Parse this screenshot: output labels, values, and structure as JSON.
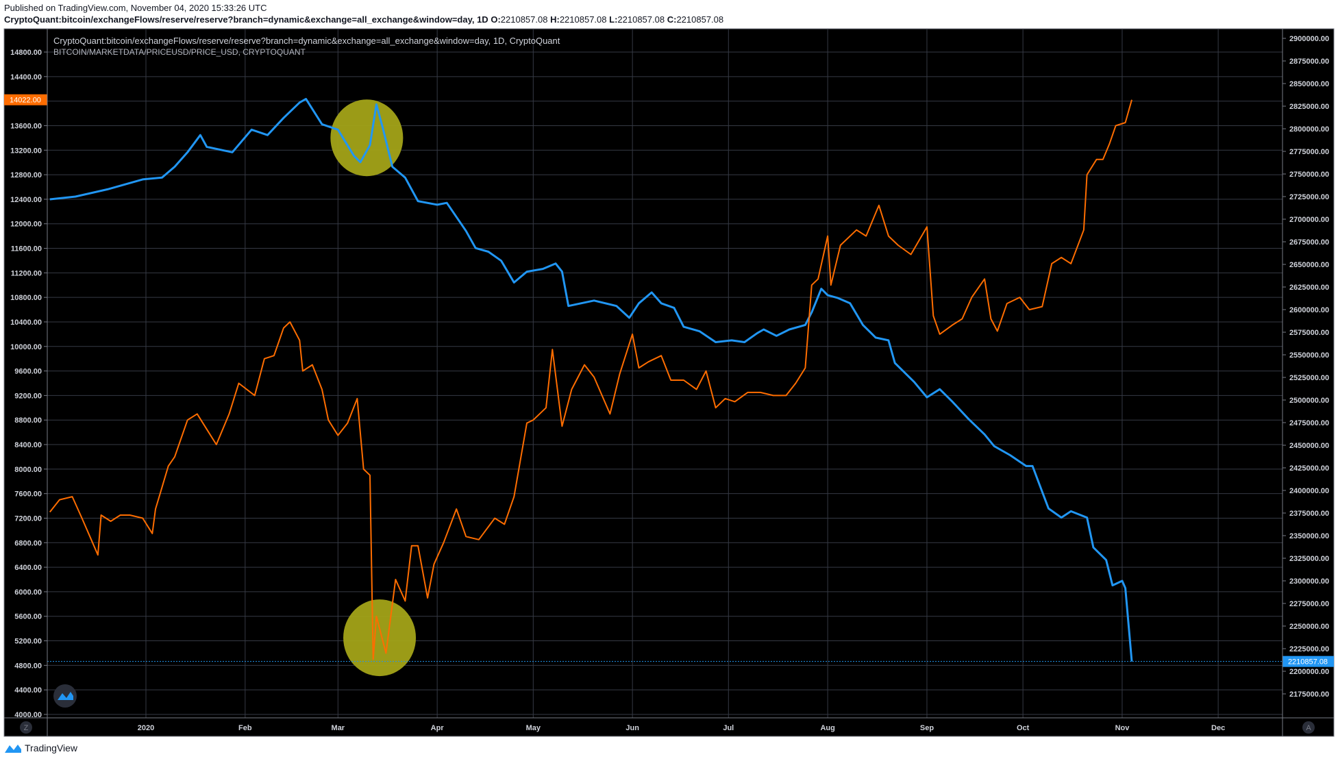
{
  "header": {
    "published": "Published on TradingView.com, November 04, 2020 15:33:26 UTC",
    "symbol": "CryptoQuant:bitcoin/exchangeFlows/reserve/reserve?branch=dynamic&exchange=all_exchange&window=day, 1D",
    "ohlc": {
      "o_label": "O:",
      "o": "2210857.08",
      "h_label": "H:",
      "h": "2210857.08",
      "l_label": "L:",
      "l": "2210857.08",
      "c_label": "C:",
      "c": "2210857.08"
    }
  },
  "legend": {
    "series1": "CryptoQuant:bitcoin/exchangeFlows/reserve/reserve?branch=dynamic&exchange=all_exchange&window=day, 1D, CryptoQuant",
    "series2": "BITCOIN/MARKETDATA/PRICEUSD/PRICE_USD, CRYPTOQUANT"
  },
  "footer": {
    "brand": "TradingView"
  },
  "buttons": {
    "left_scale": "Z",
    "right_scale": "A"
  },
  "colors": {
    "background": "#000000",
    "grid": "#363a45",
    "price": "#ff6d00",
    "reserve": "#2196f3",
    "highlight": "#a3a318"
  },
  "chart_data": {
    "type": "line",
    "grid": true,
    "x_ticks": [
      "2020",
      "Feb",
      "Mar",
      "Apr",
      "May",
      "Jun",
      "Jul",
      "Aug",
      "Sep",
      "Oct",
      "Nov",
      "Dec"
    ],
    "x_tick_dates": [
      "2020-01-01",
      "2020-02-01",
      "2020-03-01",
      "2020-04-01",
      "2020-05-01",
      "2020-06-01",
      "2020-07-01",
      "2020-08-01",
      "2020-09-01",
      "2020-10-01",
      "2020-11-01",
      "2020-12-01"
    ],
    "left_axis": {
      "range": [
        4000,
        14800
      ],
      "ticks": [
        "14800.00",
        "14400.00",
        "13600.00",
        "13200.00",
        "12800.00",
        "12400.00",
        "12000.00",
        "11600.00",
        "11200.00",
        "10800.00",
        "10400.00",
        "10000.00",
        "9600.00",
        "9200.00",
        "8800.00",
        "8400.00",
        "8000.00",
        "7600.00",
        "7200.00",
        "6800.00",
        "6400.00",
        "6000.00",
        "5600.00",
        "5200.00",
        "4800.00",
        "4400.00",
        "4000.00"
      ],
      "last_label": "14022.00"
    },
    "right_axis": {
      "range": [
        2175000,
        2900000
      ],
      "ticks": [
        "2900000.00",
        "2875000.00",
        "2850000.00",
        "2825000.00",
        "2800000.00",
        "2775000.00",
        "2750000.00",
        "2725000.00",
        "2700000.00",
        "2675000.00",
        "2650000.00",
        "2625000.00",
        "2600000.00",
        "2575000.00",
        "2550000.00",
        "2525000.00",
        "2500000.00",
        "2475000.00",
        "2450000.00",
        "2425000.00",
        "2400000.00",
        "2375000.00",
        "2350000.00",
        "2325000.00",
        "2300000.00",
        "2275000.00",
        "2250000.00",
        "2225000.00",
        "2200000.00",
        "2175000.00"
      ],
      "last_label": "2210857.08"
    },
    "series": [
      {
        "key": "reserve",
        "axis": "right",
        "color": "#2196f3",
        "points": [
          [
            "2019-12-02",
            2722000
          ],
          [
            "2019-12-10",
            2725000
          ],
          [
            "2019-12-20",
            2733000
          ],
          [
            "2019-12-31",
            2744000
          ],
          [
            "2020-01-06",
            2746000
          ],
          [
            "2020-01-10",
            2758000
          ],
          [
            "2020-01-14",
            2774000
          ],
          [
            "2020-01-18",
            2793000
          ],
          [
            "2020-01-20",
            2780000
          ],
          [
            "2020-01-28",
            2774000
          ],
          [
            "2020-02-03",
            2799000
          ],
          [
            "2020-02-08",
            2793000
          ],
          [
            "2020-02-13",
            2812000
          ],
          [
            "2020-02-18",
            2829000
          ],
          [
            "2020-02-20",
            2833000
          ],
          [
            "2020-02-25",
            2805000
          ],
          [
            "2020-03-01",
            2799000
          ],
          [
            "2020-03-06",
            2770000
          ],
          [
            "2020-03-08",
            2763000
          ],
          [
            "2020-03-11",
            2782000
          ],
          [
            "2020-03-13",
            2827000
          ],
          [
            "2020-03-15",
            2801000
          ],
          [
            "2020-03-18",
            2758000
          ],
          [
            "2020-03-22",
            2746000
          ],
          [
            "2020-03-26",
            2720000
          ],
          [
            "2020-04-01",
            2716000
          ],
          [
            "2020-04-04",
            2718000
          ],
          [
            "2020-04-10",
            2687000
          ],
          [
            "2020-04-13",
            2668000
          ],
          [
            "2020-04-17",
            2664000
          ],
          [
            "2020-04-21",
            2654000
          ],
          [
            "2020-04-25",
            2630000
          ],
          [
            "2020-04-29",
            2642000
          ],
          [
            "2020-05-04",
            2645000
          ],
          [
            "2020-05-08",
            2651000
          ],
          [
            "2020-05-10",
            2642000
          ],
          [
            "2020-05-12",
            2604000
          ],
          [
            "2020-05-20",
            2610000
          ],
          [
            "2020-05-27",
            2604000
          ],
          [
            "2020-05-31",
            2591000
          ],
          [
            "2020-06-03",
            2607000
          ],
          [
            "2020-06-07",
            2619000
          ],
          [
            "2020-06-10",
            2607000
          ],
          [
            "2020-06-14",
            2602000
          ],
          [
            "2020-06-17",
            2581000
          ],
          [
            "2020-06-22",
            2576000
          ],
          [
            "2020-06-27",
            2564000
          ],
          [
            "2020-07-02",
            2566000
          ],
          [
            "2020-07-06",
            2564000
          ],
          [
            "2020-07-10",
            2574000
          ],
          [
            "2020-07-12",
            2578000
          ],
          [
            "2020-07-16",
            2571000
          ],
          [
            "2020-07-20",
            2578000
          ],
          [
            "2020-07-25",
            2583000
          ],
          [
            "2020-07-27",
            2597000
          ],
          [
            "2020-07-30",
            2623000
          ],
          [
            "2020-08-01",
            2616000
          ],
          [
            "2020-08-04",
            2613000
          ],
          [
            "2020-08-08",
            2607000
          ],
          [
            "2020-08-12",
            2583000
          ],
          [
            "2020-08-16",
            2569000
          ],
          [
            "2020-08-20",
            2566000
          ],
          [
            "2020-08-22",
            2541000
          ],
          [
            "2020-08-28",
            2520000
          ],
          [
            "2020-09-01",
            2503000
          ],
          [
            "2020-09-05",
            2512000
          ],
          [
            "2020-09-09",
            2498000
          ],
          [
            "2020-09-14",
            2479000
          ],
          [
            "2020-09-19",
            2462000
          ],
          [
            "2020-09-22",
            2449000
          ],
          [
            "2020-09-27",
            2439000
          ],
          [
            "2020-10-02",
            2427000
          ],
          [
            "2020-10-04",
            2427000
          ],
          [
            "2020-10-06",
            2408000
          ],
          [
            "2020-10-09",
            2380000
          ],
          [
            "2020-10-13",
            2370000
          ],
          [
            "2020-10-16",
            2377000
          ],
          [
            "2020-10-21",
            2370000
          ],
          [
            "2020-10-23",
            2337000
          ],
          [
            "2020-10-27",
            2323000
          ],
          [
            "2020-10-29",
            2295000
          ],
          [
            "2020-11-01",
            2300000
          ],
          [
            "2020-11-02",
            2292000
          ],
          [
            "2020-11-04",
            2210857.08
          ]
        ]
      },
      {
        "key": "price",
        "axis": "left",
        "color": "#ff6d00",
        "points": [
          [
            "2019-12-02",
            7300
          ],
          [
            "2019-12-05",
            7500
          ],
          [
            "2019-12-09",
            7550
          ],
          [
            "2019-12-12",
            7200
          ],
          [
            "2019-12-17",
            6600
          ],
          [
            "2019-12-18",
            7250
          ],
          [
            "2019-12-21",
            7150
          ],
          [
            "2019-12-24",
            7250
          ],
          [
            "2019-12-27",
            7250
          ],
          [
            "2019-12-31",
            7200
          ],
          [
            "2020-01-03",
            6950
          ],
          [
            "2020-01-04",
            7350
          ],
          [
            "2020-01-06",
            7700
          ],
          [
            "2020-01-08",
            8050
          ],
          [
            "2020-01-10",
            8200
          ],
          [
            "2020-01-14",
            8800
          ],
          [
            "2020-01-17",
            8900
          ],
          [
            "2020-01-20",
            8650
          ],
          [
            "2020-01-23",
            8400
          ],
          [
            "2020-01-27",
            8900
          ],
          [
            "2020-01-30",
            9400
          ],
          [
            "2020-02-04",
            9200
          ],
          [
            "2020-02-07",
            9800
          ],
          [
            "2020-02-10",
            9850
          ],
          [
            "2020-02-13",
            10300
          ],
          [
            "2020-02-15",
            10400
          ],
          [
            "2020-02-18",
            10100
          ],
          [
            "2020-02-19",
            9600
          ],
          [
            "2020-02-22",
            9700
          ],
          [
            "2020-02-25",
            9300
          ],
          [
            "2020-02-27",
            8800
          ],
          [
            "2020-03-01",
            8550
          ],
          [
            "2020-03-04",
            8750
          ],
          [
            "2020-03-07",
            9150
          ],
          [
            "2020-03-09",
            8000
          ],
          [
            "2020-03-11",
            7900
          ],
          [
            "2020-03-12",
            4900
          ],
          [
            "2020-03-13",
            5600
          ],
          [
            "2020-03-16",
            5000
          ],
          [
            "2020-03-19",
            6200
          ],
          [
            "2020-03-22",
            5850
          ],
          [
            "2020-03-24",
            6750
          ],
          [
            "2020-03-26",
            6750
          ],
          [
            "2020-03-29",
            5900
          ],
          [
            "2020-03-31",
            6450
          ],
          [
            "2020-04-03",
            6800
          ],
          [
            "2020-04-07",
            7350
          ],
          [
            "2020-04-10",
            6900
          ],
          [
            "2020-04-14",
            6850
          ],
          [
            "2020-04-19",
            7200
          ],
          [
            "2020-04-22",
            7100
          ],
          [
            "2020-04-25",
            7550
          ],
          [
            "2020-04-29",
            8750
          ],
          [
            "2020-05-01",
            8800
          ],
          [
            "2020-05-05",
            9000
          ],
          [
            "2020-05-07",
            9950
          ],
          [
            "2020-05-10",
            8700
          ],
          [
            "2020-05-13",
            9300
          ],
          [
            "2020-05-17",
            9700
          ],
          [
            "2020-05-20",
            9500
          ],
          [
            "2020-05-25",
            8900
          ],
          [
            "2020-05-28",
            9550
          ],
          [
            "2020-06-01",
            10200
          ],
          [
            "2020-06-03",
            9650
          ],
          [
            "2020-06-06",
            9750
          ],
          [
            "2020-06-10",
            9850
          ],
          [
            "2020-06-13",
            9450
          ],
          [
            "2020-06-17",
            9450
          ],
          [
            "2020-06-21",
            9300
          ],
          [
            "2020-06-24",
            9600
          ],
          [
            "2020-06-27",
            9000
          ],
          [
            "2020-06-30",
            9150
          ],
          [
            "2020-07-03",
            9100
          ],
          [
            "2020-07-07",
            9250
          ],
          [
            "2020-07-11",
            9250
          ],
          [
            "2020-07-15",
            9200
          ],
          [
            "2020-07-19",
            9200
          ],
          [
            "2020-07-22",
            9400
          ],
          [
            "2020-07-25",
            9650
          ],
          [
            "2020-07-27",
            11000
          ],
          [
            "2020-07-29",
            11100
          ],
          [
            "2020-08-01",
            11800
          ],
          [
            "2020-08-02",
            11000
          ],
          [
            "2020-08-05",
            11650
          ],
          [
            "2020-08-10",
            11900
          ],
          [
            "2020-08-13",
            11800
          ],
          [
            "2020-08-17",
            12300
          ],
          [
            "2020-08-20",
            11800
          ],
          [
            "2020-08-23",
            11650
          ],
          [
            "2020-08-27",
            11500
          ],
          [
            "2020-09-01",
            11950
          ],
          [
            "2020-09-03",
            10500
          ],
          [
            "2020-09-05",
            10200
          ],
          [
            "2020-09-09",
            10350
          ],
          [
            "2020-09-12",
            10450
          ],
          [
            "2020-09-15",
            10800
          ],
          [
            "2020-09-19",
            11100
          ],
          [
            "2020-09-21",
            10450
          ],
          [
            "2020-09-23",
            10250
          ],
          [
            "2020-09-26",
            10700
          ],
          [
            "2020-09-30",
            10800
          ],
          [
            "2020-10-03",
            10600
          ],
          [
            "2020-10-07",
            10650
          ],
          [
            "2020-10-10",
            11350
          ],
          [
            "2020-10-13",
            11450
          ],
          [
            "2020-10-16",
            11350
          ],
          [
            "2020-10-20",
            11900
          ],
          [
            "2020-10-21",
            12800
          ],
          [
            "2020-10-24",
            13050
          ],
          [
            "2020-10-26",
            13050
          ],
          [
            "2020-10-28",
            13300
          ],
          [
            "2020-10-30",
            13600
          ],
          [
            "2020-11-02",
            13650
          ],
          [
            "2020-11-04",
            14022
          ]
        ]
      }
    ],
    "highlights": [
      {
        "axis": "right",
        "date": "2020-03-10",
        "value": 2790000
      },
      {
        "axis": "left",
        "date": "2020-03-14",
        "value": 5250
      }
    ]
  }
}
